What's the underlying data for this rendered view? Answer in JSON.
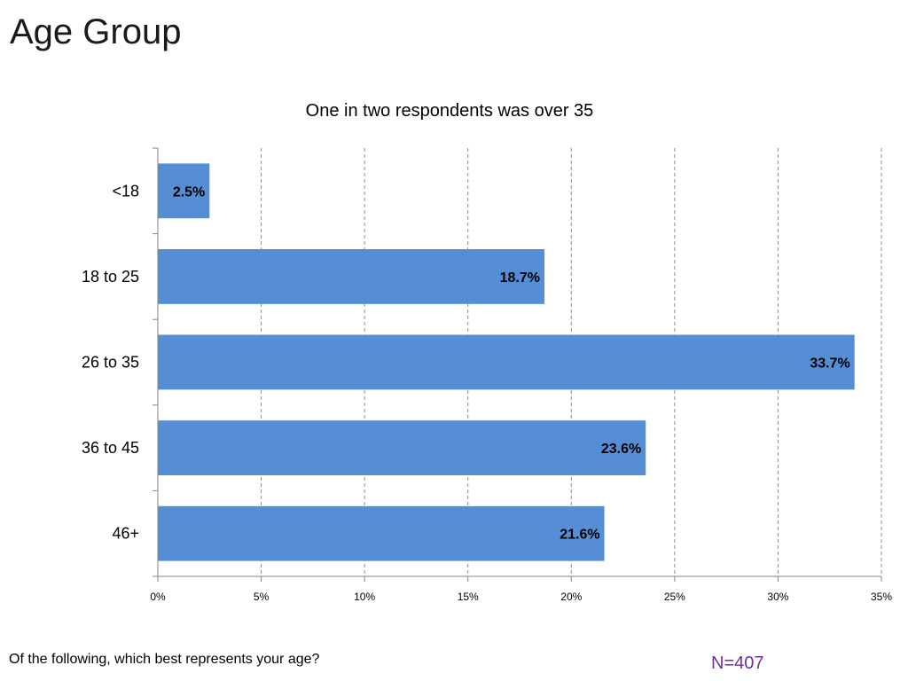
{
  "page": {
    "title": "Age Group",
    "question": "Of the following, which best represents your age?",
    "sample_size": "N=407"
  },
  "chart_data": {
    "type": "bar",
    "orientation": "horizontal",
    "title": "One in two respondents was over 35",
    "xlabel": "",
    "ylabel": "",
    "categories": [
      "<18",
      "18 to 25",
      "26 to 35",
      "36 to 45",
      "46+"
    ],
    "values": [
      2.5,
      18.7,
      33.7,
      23.6,
      21.6
    ],
    "data_labels": [
      "2.5%",
      "18.7%",
      "33.7%",
      "23.6%",
      "21.6%"
    ],
    "xlim": [
      0,
      35
    ],
    "ticks": [
      0,
      5,
      10,
      15,
      20,
      25,
      30,
      35
    ],
    "tick_labels": [
      "0%",
      "5%",
      "10%",
      "15%",
      "20%",
      "25%",
      "30%",
      "35%"
    ],
    "grid": "vertical dashed",
    "legend": "none",
    "bar_color": "#558ed5"
  }
}
